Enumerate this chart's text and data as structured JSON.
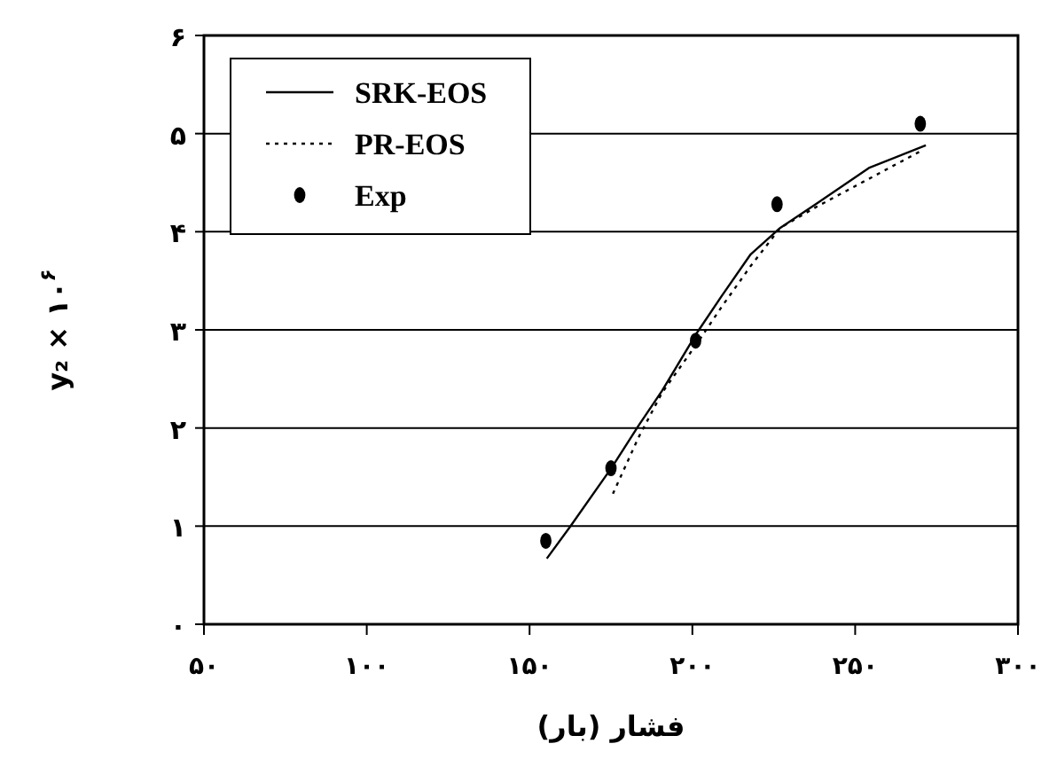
{
  "chart_data": {
    "type": "line",
    "xlabel": "فشار (بار)",
    "ylabel": "y₂ × ۱۰$^{۶}$",
    "xlim": [
      50,
      300
    ],
    "ylim": [
      0,
      6
    ],
    "xticks": [
      {
        "value": 50,
        "label": "۵۰"
      },
      {
        "value": 100,
        "label": "۱۰۰"
      },
      {
        "value": 150,
        "label": "۱۵۰"
      },
      {
        "value": 200,
        "label": "۲۰۰"
      },
      {
        "value": 250,
        "label": "۲۵۰"
      },
      {
        "value": 300,
        "label": "۳۰۰"
      }
    ],
    "yticks": [
      {
        "value": 0,
        "label": "۰"
      },
      {
        "value": 1,
        "label": "۱"
      },
      {
        "value": 2,
        "label": "۲"
      },
      {
        "value": 3,
        "label": "۳"
      },
      {
        "value": 4,
        "label": "۴"
      },
      {
        "value": 5,
        "label": "۵"
      },
      {
        "value": 6,
        "label": "۶"
      }
    ],
    "grid": "y",
    "legend": "top left",
    "series": [
      {
        "name": "SRK-EOS",
        "line_style": "solid",
        "marker": "none",
        "color": "#000000",
        "x": [
          155.3,
          162.6,
          175.3,
          183.4,
          190.7,
          201.6,
          208.9,
          217.9,
          227.0,
          237.9,
          254.2,
          271.7
        ],
        "values": [
          0.67,
          1.0,
          1.6,
          2.02,
          2.38,
          2.98,
          3.34,
          3.77,
          4.04,
          4.28,
          4.65,
          4.88
        ]
      },
      {
        "name": "PR-EOS",
        "line_style": "dotted",
        "marker": "none",
        "color": "#000000",
        "x": [
          175.6,
          183.4,
          190.7,
          201.6,
          208.9,
          217.9,
          227.0,
          237.9,
          270.6
        ],
        "values": [
          1.33,
          1.9,
          2.36,
          2.87,
          3.23,
          3.65,
          4.04,
          4.25,
          4.83
        ]
      },
      {
        "name": "Exp",
        "type": "scatter",
        "marker": "circle",
        "color": "#000000",
        "x": [
          155,
          175,
          201,
          226,
          270
        ],
        "values": [
          0.85,
          1.59,
          2.89,
          4.28,
          5.1
        ]
      }
    ]
  }
}
